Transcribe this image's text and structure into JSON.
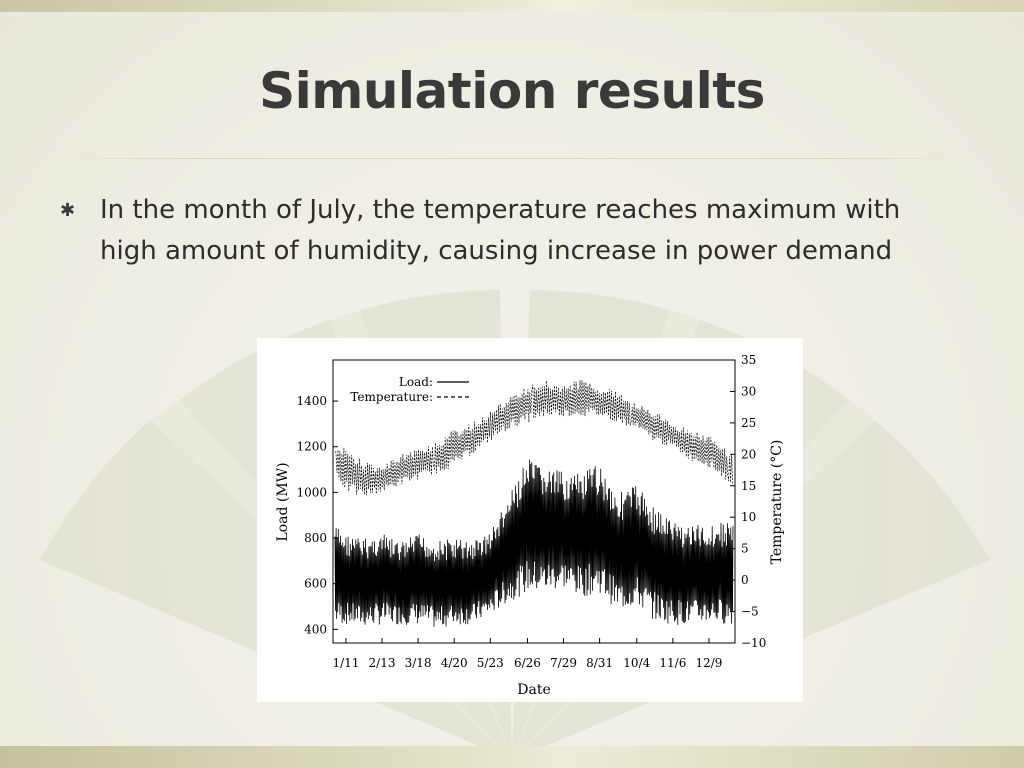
{
  "slide": {
    "title": "Simulation results",
    "bullet_icon": "asterisk-bullet-icon",
    "bullet_text": "In the month of July, the temperature reaches maximum with high amount of humidity, causing increase in power demand"
  },
  "chart_data": {
    "type": "line",
    "xlabel": "Date",
    "ylabel": "Load (MW)",
    "y2label": "Temperature (°C)",
    "xticks": [
      "1/11",
      "2/13",
      "3/18",
      "4/20",
      "5/23",
      "6/26",
      "7/29",
      "8/31",
      "10/4",
      "11/6",
      "12/9"
    ],
    "yticks": [
      400,
      600,
      800,
      1000,
      1200,
      1400
    ],
    "y2ticks": [
      -10,
      -5,
      0,
      5,
      10,
      15,
      20,
      25,
      30,
      35
    ],
    "ylim": [
      340,
      1580
    ],
    "y2lim": [
      -10,
      35
    ],
    "legend_position": "top-left",
    "series": [
      {
        "name": "Load:",
        "style": "solid",
        "axis": "left",
        "x": [
          "1/1",
          "1/11",
          "1/27",
          "2/13",
          "3/1",
          "3/18",
          "4/4",
          "4/20",
          "5/7",
          "5/23",
          "6/9",
          "6/26",
          "7/12",
          "7/29",
          "8/14",
          "8/31",
          "9/17",
          "10/4",
          "10/20",
          "11/6",
          "11/22",
          "12/9",
          "12/31"
        ],
        "upper": [
          860,
          820,
          800,
          820,
          780,
          820,
          790,
          800,
          790,
          830,
          980,
          1150,
          1110,
          1090,
          1080,
          1130,
          1000,
          1040,
          940,
          880,
          860,
          860,
          880
        ],
        "lower": [
          420,
          420,
          410,
          420,
          420,
          420,
          400,
          420,
          420,
          460,
          520,
          560,
          560,
          580,
          540,
          560,
          480,
          500,
          440,
          420,
          420,
          430,
          420
        ]
      },
      {
        "name": "Temperature:",
        "style": "dashed",
        "axis": "right",
        "x": [
          "1/1",
          "1/11",
          "1/27",
          "2/13",
          "3/1",
          "3/18",
          "4/4",
          "4/20",
          "5/7",
          "5/23",
          "6/9",
          "6/26",
          "7/12",
          "7/29",
          "8/14",
          "8/31",
          "9/17",
          "10/4",
          "10/20",
          "11/6",
          "11/22",
          "12/9",
          "12/31"
        ],
        "upper": [
          21,
          21,
          19,
          18,
          20,
          21,
          22,
          24,
          25,
          27,
          29,
          31,
          32,
          31,
          32,
          31,
          30,
          28,
          27,
          25,
          24,
          23,
          20
        ],
        "lower": [
          17,
          14,
          13,
          14,
          15,
          16,
          17,
          18,
          20,
          22,
          24,
          25,
          26,
          26,
          26,
          26,
          25,
          24,
          22,
          21,
          19,
          18,
          15
        ]
      }
    ]
  }
}
